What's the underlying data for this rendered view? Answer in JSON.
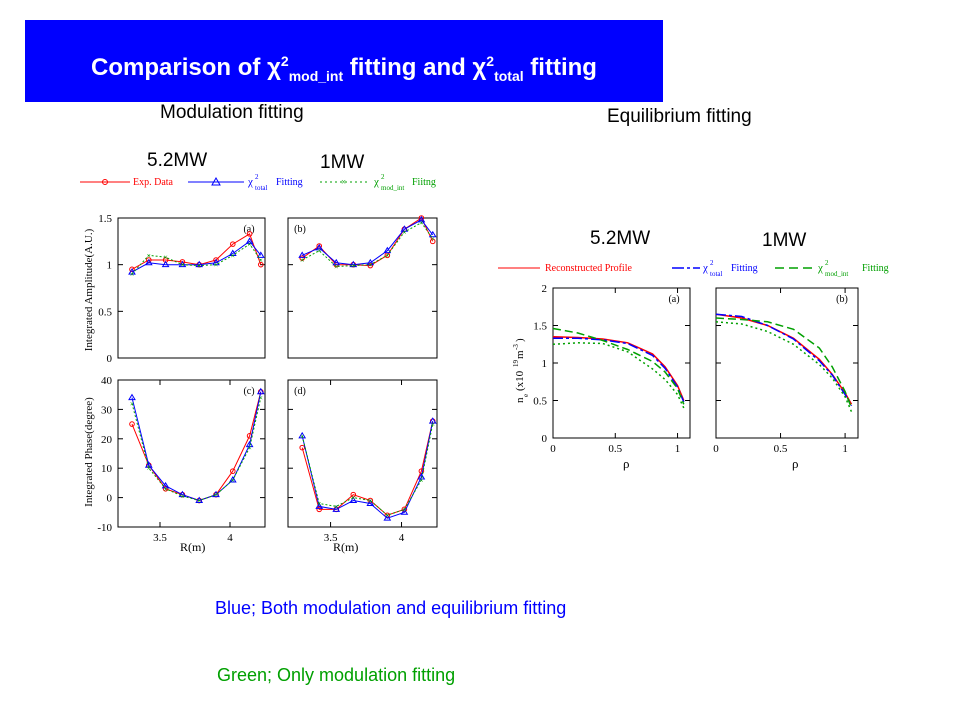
{
  "title": {
    "prefix": "Comparison of ",
    "chi1": "χ",
    "sup1": "2",
    "sub1": "mod_int",
    "middle": " fitting and ",
    "chi2": "χ",
    "sup2": "2",
    "sub2": "total",
    "suffix": " fitting"
  },
  "headings": {
    "modulation": "Modulation fitting",
    "equilibrium": "Equilibrium fitting"
  },
  "power_labels": {
    "left_52": "5.2MW",
    "left_1": "1MW",
    "right_52": "5.2MW",
    "right_1": "1MW"
  },
  "notes": {
    "blue": "Blue; Both modulation and equilibrium fitting",
    "green": "Green; Only  modulation fitting"
  },
  "colors": {
    "title_bg": "#0000ff",
    "title_text": "#ffffff",
    "exp": "#ff0000",
    "total": "#0000ff",
    "mod_int": "#00a000",
    "note_blue": "#0000ff",
    "note_green": "#00a000"
  },
  "legends": {
    "left": {
      "exp": "Exp. Data",
      "chi": "χ",
      "sup": "2",
      "total_sub": "total",
      "total_text": "Fitting",
      "mod_sub": "mod_int",
      "mod_text": "Fiitng"
    },
    "right": {
      "recon": "Reconstructed Profile",
      "chi": "χ",
      "sup": "2",
      "total_sub": "total",
      "total_text": "Fitting",
      "mod_sub": "mod_int",
      "mod_text": "Fitting"
    }
  },
  "axis_labels": {
    "amp_ylabel": "Integrated Amplitude(A.U.)",
    "phase_ylabel": "Integrated Phase(degree)",
    "rlabel": "R(m)",
    "ne_ylabel": "n",
    "ne_sub": "e",
    "ne_unit": "(x10",
    "ne_exp": "19",
    "ne_m": "m",
    "ne_mexp": "-3",
    "ne_close": ")",
    "rho_label": "ρ"
  },
  "panel_labels": {
    "a": "(a)",
    "b": "(b)",
    "c": "(c)",
    "d": "(d)",
    "ra": "(a)",
    "rb": "(b)"
  },
  "chart_data": [
    {
      "id": "a",
      "type": "line",
      "xlim": [
        3.2,
        4.25
      ],
      "ylim": [
        0,
        1.5
      ],
      "yticks": [
        "0",
        "0.5",
        "1",
        "1.5"
      ],
      "xticks": [],
      "x": [
        3.3,
        3.42,
        3.54,
        3.66,
        3.78,
        3.9,
        4.02,
        4.14,
        4.22
      ],
      "series": [
        {
          "key": "exp",
          "values": [
            0.95,
            1.05,
            1.05,
            1.03,
            1.0,
            1.05,
            1.22,
            1.33,
            1.0
          ]
        },
        {
          "key": "total",
          "values": [
            0.92,
            1.02,
            1.0,
            1.0,
            1.0,
            1.02,
            1.12,
            1.25,
            1.1
          ]
        },
        {
          "key": "mod_int",
          "values": [
            0.9,
            1.1,
            1.08,
            1.0,
            0.99,
            1.0,
            1.1,
            1.22,
            1.05
          ]
        }
      ]
    },
    {
      "id": "b",
      "type": "line",
      "xlim": [
        3.2,
        4.25
      ],
      "ylim": [
        0,
        1.5
      ],
      "yticks": [],
      "xticks": [],
      "x": [
        3.3,
        3.42,
        3.54,
        3.66,
        3.78,
        3.9,
        4.02,
        4.14,
        4.22
      ],
      "series": [
        {
          "key": "exp",
          "values": [
            1.07,
            1.2,
            1.0,
            1.0,
            0.99,
            1.1,
            1.38,
            1.5,
            1.25
          ]
        },
        {
          "key": "total",
          "values": [
            1.1,
            1.18,
            1.02,
            1.0,
            1.02,
            1.15,
            1.38,
            1.48,
            1.32
          ]
        },
        {
          "key": "mod_int",
          "values": [
            1.05,
            1.15,
            0.98,
            0.99,
            1.0,
            1.1,
            1.35,
            1.45,
            1.28
          ]
        }
      ]
    },
    {
      "id": "c",
      "type": "line",
      "xlim": [
        3.2,
        4.25
      ],
      "ylim": [
        -10,
        40
      ],
      "yticks": [
        "-10",
        "0",
        "10",
        "20",
        "30",
        "40"
      ],
      "xticks": [
        "3.5",
        "4"
      ],
      "x": [
        3.3,
        3.42,
        3.54,
        3.66,
        3.78,
        3.9,
        4.02,
        4.14,
        4.22
      ],
      "series": [
        {
          "key": "exp",
          "values": [
            25,
            11,
            3,
            1,
            -1,
            1,
            9,
            21,
            36
          ]
        },
        {
          "key": "total",
          "values": [
            34,
            11,
            4,
            1,
            -1,
            1,
            6,
            18,
            36
          ]
        },
        {
          "key": "mod_int",
          "values": [
            32,
            10,
            3,
            0.5,
            -1,
            1,
            6,
            17,
            34
          ]
        }
      ]
    },
    {
      "id": "d",
      "type": "line",
      "xlim": [
        3.2,
        4.25
      ],
      "ylim": [
        -10,
        40
      ],
      "yticks": [],
      "xticks": [
        "3.5",
        "4"
      ],
      "x": [
        3.3,
        3.42,
        3.54,
        3.66,
        3.78,
        3.9,
        4.02,
        4.14,
        4.22
      ],
      "series": [
        {
          "key": "exp",
          "values": [
            17,
            -4,
            -4,
            1,
            -1,
            -6,
            -4,
            9,
            26
          ]
        },
        {
          "key": "total",
          "values": [
            21,
            -3,
            -4,
            -1,
            -2,
            -7,
            -5,
            7,
            26
          ]
        },
        {
          "key": "mod_int",
          "values": [
            21,
            -2,
            -3,
            0,
            -1,
            -6,
            -4,
            6,
            25
          ]
        }
      ]
    },
    {
      "id": "ra",
      "type": "line",
      "xlim": [
        0,
        1.1
      ],
      "ylim": [
        0,
        2
      ],
      "yticks": [
        "0",
        "0.5",
        "1",
        "1.5",
        "2"
      ],
      "xticks": [
        "0",
        "0.5",
        "1"
      ],
      "x": [
        0,
        0.2,
        0.4,
        0.6,
        0.8,
        0.9,
        1.0,
        1.05
      ],
      "series": [
        {
          "key": "exp",
          "values": [
            1.35,
            1.34,
            1.32,
            1.27,
            1.12,
            0.95,
            0.7,
            0.5
          ]
        },
        {
          "key": "total",
          "values": [
            1.33,
            1.33,
            1.31,
            1.26,
            1.1,
            0.93,
            0.68,
            0.48
          ]
        },
        {
          "key": "mod_int",
          "values": [
            1.46,
            1.4,
            1.3,
            1.18,
            1.02,
            0.88,
            0.66,
            0.45
          ]
        },
        {
          "key": "mod_int",
          "values": [
            1.25,
            1.27,
            1.26,
            1.15,
            0.92,
            0.78,
            0.58,
            0.4
          ]
        }
      ]
    },
    {
      "id": "rb",
      "type": "line",
      "xlim": [
        0,
        1.1
      ],
      "ylim": [
        0,
        2
      ],
      "yticks": [],
      "xticks": [
        "0",
        "0.5",
        "1"
      ],
      "x": [
        0,
        0.2,
        0.4,
        0.6,
        0.8,
        0.9,
        1.0,
        1.05
      ],
      "series": [
        {
          "key": "exp",
          "values": [
            1.65,
            1.6,
            1.5,
            1.33,
            1.05,
            0.85,
            0.6,
            0.45
          ]
        },
        {
          "key": "total",
          "values": [
            1.65,
            1.62,
            1.5,
            1.32,
            1.03,
            0.84,
            0.58,
            0.43
          ]
        },
        {
          "key": "mod_int",
          "values": [
            1.6,
            1.58,
            1.55,
            1.45,
            1.2,
            0.95,
            0.62,
            0.4
          ]
        },
        {
          "key": "mod_int",
          "values": [
            1.55,
            1.52,
            1.42,
            1.25,
            0.98,
            0.8,
            0.55,
            0.35
          ]
        }
      ]
    }
  ]
}
